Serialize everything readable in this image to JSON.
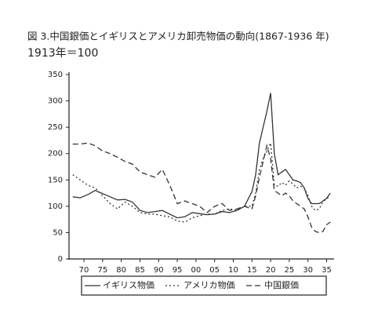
{
  "chart_data": {
    "type": "line",
    "title": "図 3.中国銀価とイギリスとアメリカ卸売物価の動向(1867-1936 年)",
    "subtitle": "1913年＝100",
    "x": [
      1867,
      1869,
      1871,
      1873,
      1875,
      1877,
      1879,
      1881,
      1883,
      1885,
      1887,
      1889,
      1891,
      1893,
      1895,
      1897,
      1899,
      1901,
      1903,
      1905,
      1907,
      1909,
      1911,
      1913,
      1915,
      1916,
      1917,
      1918,
      1919,
      1920,
      1921,
      1922,
      1923,
      1924,
      1925,
      1926,
      1927,
      1928,
      1929,
      1930,
      1931,
      1932,
      1933,
      1934,
      1935,
      1936
    ],
    "series": [
      {
        "name": "イギリス物価",
        "color": "#333333",
        "style": "solid",
        "values": [
          118,
          116,
          122,
          130,
          124,
          118,
          112,
          113,
          108,
          92,
          88,
          90,
          92,
          85,
          78,
          80,
          88,
          86,
          84,
          85,
          90,
          88,
          92,
          100,
          128,
          160,
          220,
          250,
          280,
          315,
          200,
          160,
          165,
          170,
          160,
          150,
          148,
          145,
          135,
          115,
          105,
          105,
          105,
          110,
          115,
          125
        ]
      },
      {
        "name": "アメリカ物価",
        "color": "#333333",
        "style": "dotted",
        "values": [
          160,
          150,
          140,
          135,
          120,
          105,
          95,
          108,
          100,
          88,
          85,
          85,
          82,
          80,
          72,
          70,
          78,
          82,
          85,
          85,
          92,
          95,
          92,
          100,
          100,
          125,
          170,
          190,
          205,
          220,
          140,
          138,
          145,
          140,
          148,
          142,
          135,
          138,
          135,
          120,
          100,
          92,
          95,
          108,
          115,
          118
        ]
      },
      {
        "name": "中国銀価",
        "color": "#333333",
        "style": "dashed",
        "values": [
          218,
          218,
          220,
          215,
          205,
          200,
          193,
          185,
          180,
          165,
          160,
          155,
          170,
          140,
          105,
          110,
          105,
          100,
          88,
          100,
          105,
          92,
          95,
          100,
          95,
          120,
          155,
          185,
          215,
          190,
          130,
          125,
          120,
          125,
          120,
          110,
          105,
          100,
          95,
          80,
          60,
          52,
          50,
          52,
          65,
          70
        ]
      }
    ],
    "xlim": [
      1866,
      1937
    ],
    "xticks": [
      {
        "value": 1870,
        "label": "70"
      },
      {
        "value": 1875,
        "label": "75"
      },
      {
        "value": 1880,
        "label": "80"
      },
      {
        "value": 1885,
        "label": "85"
      },
      {
        "value": 1890,
        "label": "90"
      },
      {
        "value": 1895,
        "label": "95"
      },
      {
        "value": 1900,
        "label": "00"
      },
      {
        "value": 1905,
        "label": "05"
      },
      {
        "value": 1910,
        "label": "10"
      },
      {
        "value": 1915,
        "label": "15"
      },
      {
        "value": 1920,
        "label": "20"
      },
      {
        "value": 1925,
        "label": "25"
      },
      {
        "value": 1930,
        "label": "30"
      },
      {
        "value": 1935,
        "label": "35"
      }
    ],
    "ylim": [
      0,
      350
    ],
    "yticks": [
      0,
      50,
      100,
      150,
      200,
      250,
      300,
      350
    ]
  }
}
